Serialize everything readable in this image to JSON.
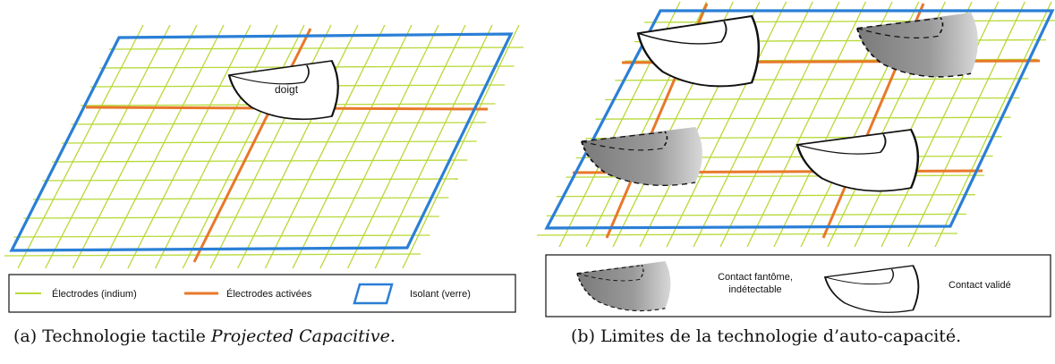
{
  "figure_a": {
    "finger_label": "doigt",
    "legend": {
      "electrodes": "Électrodes (indium)",
      "activated": "Électrodes activées",
      "insulator": "Isolant (verre)"
    },
    "caption_prefix": "(a) Technologie tactile ",
    "caption_italic": "Projected Capacitive",
    "caption_suffix": "."
  },
  "figure_b": {
    "legend": {
      "ghost_line1": "Contact fantôme,",
      "ghost_line2": "indétectable",
      "valid": "Contact validé"
    },
    "caption": "(b) Limites de la technologie d’auto-capacité."
  },
  "colors": {
    "grid": "#b7d936",
    "activated": "#e8782a",
    "insulator": "#2a7fd6",
    "ghost": "#777777"
  }
}
